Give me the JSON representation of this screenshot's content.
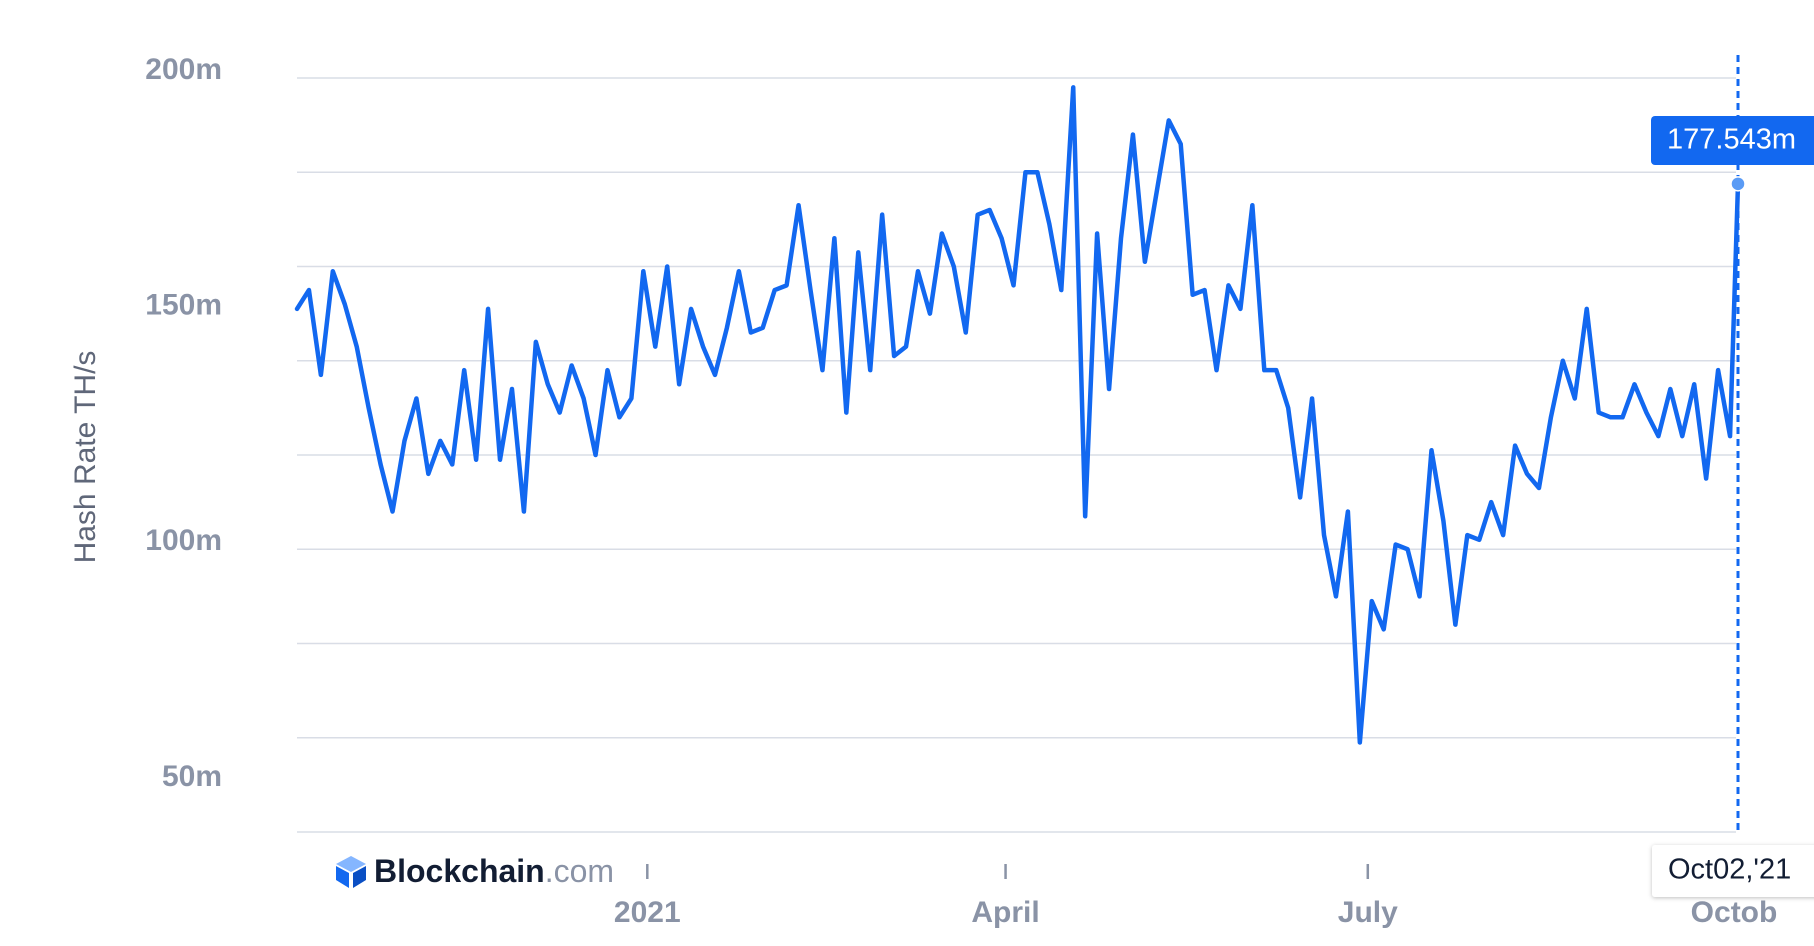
{
  "chart_data": {
    "type": "line",
    "y_axis_label": "Hash Rate TH/s",
    "logo": {
      "name": "Blockchain",
      "suffix": ".com"
    },
    "color": "#1268f0",
    "xlim": [
      "2020-10-05",
      "2021-10-02"
    ],
    "xticks": [
      {
        "value": "2021-01-01",
        "label": "2021"
      },
      {
        "value": "2021-04-01",
        "label": "April"
      },
      {
        "value": "2021-07-01",
        "label": "July"
      },
      {
        "value": "2021-10-01",
        "label": "Octob"
      }
    ],
    "ylim": [
      40,
      200
    ],
    "yticks": [
      {
        "value": 50,
        "label": "50m"
      },
      {
        "value": 100,
        "label": "100m"
      },
      {
        "value": 150,
        "label": "150m"
      },
      {
        "value": 200,
        "label": "200m"
      }
    ],
    "ygrid": [
      40,
      60,
      80,
      100,
      120,
      140,
      160,
      180,
      200
    ],
    "tooltip": {
      "label": "177.543m",
      "date_label": "Oct02,'21"
    },
    "x": [
      "2020-10-05",
      "2020-10-08",
      "2020-10-11",
      "2020-10-14",
      "2020-10-17",
      "2020-10-20",
      "2020-10-23",
      "2020-10-26",
      "2020-10-29",
      "2020-11-01",
      "2020-11-04",
      "2020-11-07",
      "2020-11-10",
      "2020-11-13",
      "2020-11-16",
      "2020-11-19",
      "2020-11-22",
      "2020-11-25",
      "2020-11-28",
      "2020-12-01",
      "2020-12-04",
      "2020-12-07",
      "2020-12-10",
      "2020-12-13",
      "2020-12-16",
      "2020-12-19",
      "2020-12-22",
      "2020-12-25",
      "2020-12-28",
      "2020-12-31",
      "2021-01-03",
      "2021-01-06",
      "2021-01-09",
      "2021-01-12",
      "2021-01-15",
      "2021-01-18",
      "2021-01-21",
      "2021-01-24",
      "2021-01-27",
      "2021-01-30",
      "2021-02-02",
      "2021-02-05",
      "2021-02-08",
      "2021-02-11",
      "2021-02-14",
      "2021-02-17",
      "2021-02-20",
      "2021-02-23",
      "2021-02-26",
      "2021-03-01",
      "2021-03-04",
      "2021-03-07",
      "2021-03-10",
      "2021-03-13",
      "2021-03-16",
      "2021-03-19",
      "2021-03-22",
      "2021-03-25",
      "2021-03-28",
      "2021-03-31",
      "2021-04-03",
      "2021-04-06",
      "2021-04-09",
      "2021-04-12",
      "2021-04-15",
      "2021-04-18",
      "2021-04-21",
      "2021-04-24",
      "2021-04-27",
      "2021-04-30",
      "2021-05-03",
      "2021-05-06",
      "2021-05-09",
      "2021-05-12",
      "2021-05-15",
      "2021-05-18",
      "2021-05-21",
      "2021-05-24",
      "2021-05-27",
      "2021-05-30",
      "2021-06-02",
      "2021-06-05",
      "2021-06-08",
      "2021-06-11",
      "2021-06-14",
      "2021-06-17",
      "2021-06-20",
      "2021-06-23",
      "2021-06-26",
      "2021-06-29",
      "2021-07-02",
      "2021-07-05",
      "2021-07-08",
      "2021-07-11",
      "2021-07-14",
      "2021-07-17",
      "2021-07-20",
      "2021-07-23",
      "2021-07-26",
      "2021-07-29",
      "2021-08-01",
      "2021-08-04",
      "2021-08-07",
      "2021-08-10",
      "2021-08-13",
      "2021-08-16",
      "2021-08-19",
      "2021-08-22",
      "2021-08-25",
      "2021-08-28",
      "2021-08-31",
      "2021-09-03",
      "2021-09-06",
      "2021-09-09",
      "2021-09-12",
      "2021-09-15",
      "2021-09-18",
      "2021-09-21",
      "2021-09-24",
      "2021-09-27",
      "2021-09-30",
      "2021-10-02"
    ],
    "values": [
      151,
      155,
      137,
      159,
      152,
      143,
      130,
      118,
      108,
      123,
      132,
      116,
      123,
      118,
      138,
      119,
      151,
      119,
      134,
      108,
      144,
      135,
      129,
      139,
      132,
      120,
      138,
      128,
      132,
      159,
      143,
      160,
      135,
      151,
      143,
      137,
      147,
      159,
      146,
      147,
      155,
      156,
      173,
      155,
      138,
      166,
      129,
      163,
      138,
      171,
      141,
      143,
      159,
      150,
      167,
      160,
      146,
      171,
      172,
      166,
      156,
      180,
      180,
      169,
      155,
      198,
      107,
      167,
      134,
      166,
      188,
      161,
      176,
      191,
      186,
      154,
      155,
      138,
      156,
      151,
      173,
      138,
      138,
      130,
      111,
      132,
      103,
      90,
      108,
      59,
      89,
      83,
      101,
      100,
      90,
      121,
      106,
      84,
      103,
      102,
      110,
      103,
      122,
      116,
      113,
      128,
      140,
      132,
      151,
      129,
      128,
      128,
      135,
      129,
      124,
      134,
      124,
      135,
      115,
      138,
      124,
      177.543
    ]
  }
}
